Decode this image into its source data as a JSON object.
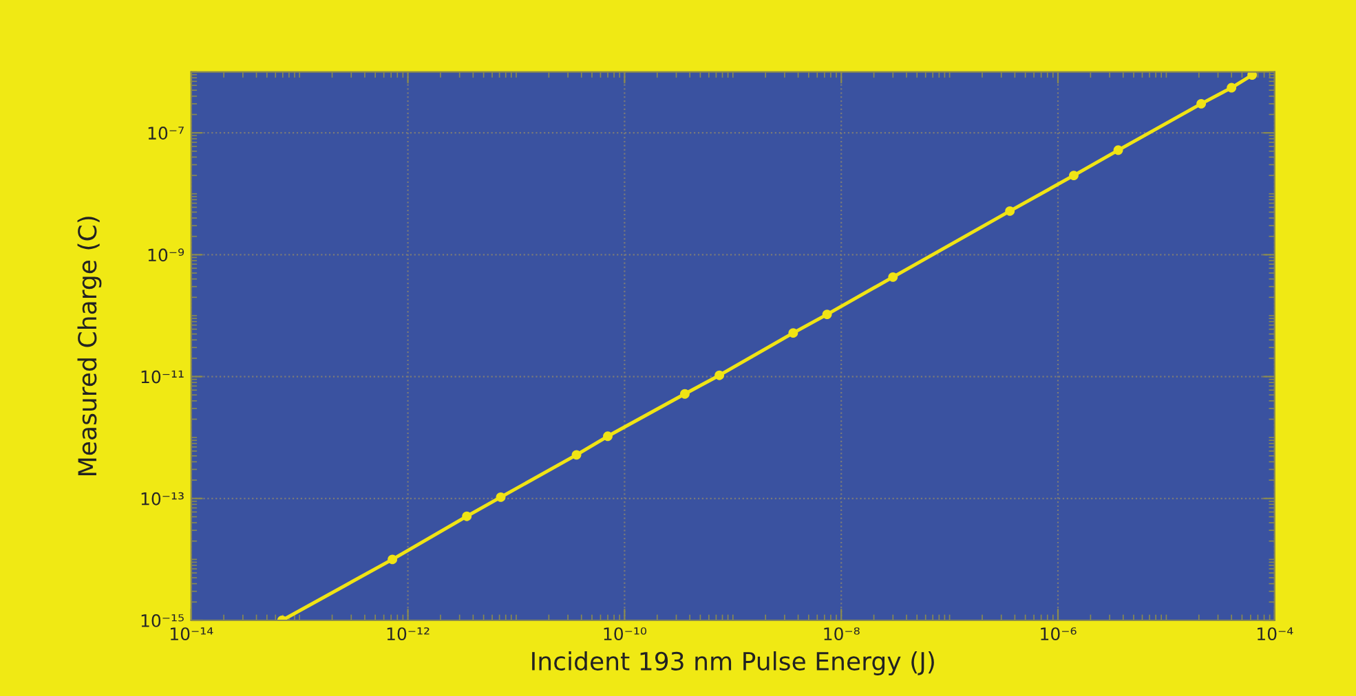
{
  "chart_data": {
    "type": "line",
    "xlabel": "Incident 193 nm Pulse Energy (J)",
    "ylabel": "Measured Charge (C)",
    "log": "xy",
    "grid": true,
    "marker": "circle",
    "line_style": "solid",
    "xlim": [
      1e-14,
      0.0001
    ],
    "ylim": [
      1e-15,
      1e-06
    ],
    "xticks": [
      {
        "value": 1e-14,
        "label": "10⁻¹⁴"
      },
      {
        "value": 1e-12,
        "label": "10⁻¹²"
      },
      {
        "value": 1e-10,
        "label": "10⁻¹⁰"
      },
      {
        "value": 1e-08,
        "label": "10⁻⁸"
      },
      {
        "value": 1e-06,
        "label": "10⁻⁶"
      },
      {
        "value": 0.0001,
        "label": "10⁻⁴"
      }
    ],
    "yticks": [
      {
        "value": 1e-15,
        "label": "10⁻¹⁵"
      },
      {
        "value": 1e-13,
        "label": "10⁻¹³"
      },
      {
        "value": 1e-11,
        "label": "10⁻¹¹"
      },
      {
        "value": 1e-09,
        "label": "10⁻⁹"
      },
      {
        "value": 1e-07,
        "label": "10⁻⁷"
      }
    ],
    "series": [
      {
        "color": "#f0e414",
        "x": [
          6.9e-14,
          7.2e-13,
          3.5e-12,
          7.2e-12,
          3.6e-11,
          7e-11,
          3.6e-10,
          7.5e-10,
          3.6e-09,
          7.4e-09,
          3e-08,
          3.6e-07,
          1.4e-06,
          3.6e-06,
          2.1e-05,
          4e-05,
          6.2e-05
        ],
        "values": [
          1e-15,
          1e-14,
          5.1e-14,
          1.05e-13,
          5.2e-13,
          1.05e-12,
          5.2e-12,
          1.05e-11,
          5.2e-11,
          1.05e-10,
          4.3e-10,
          5.2e-09,
          2e-08,
          5.2e-08,
          3e-07,
          5.5e-07,
          8.9e-07
        ]
      }
    ]
  }
}
